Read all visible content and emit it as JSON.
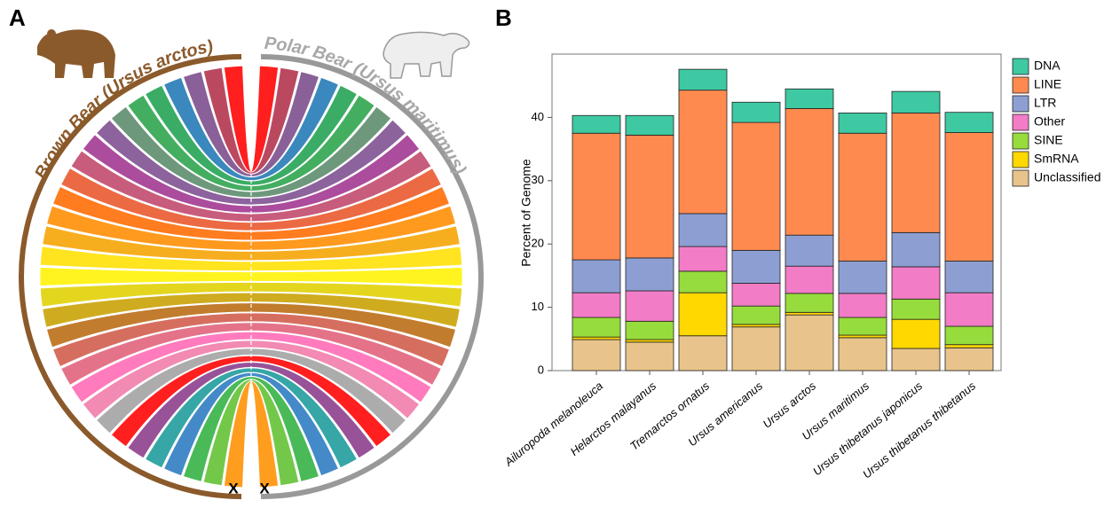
{
  "panel_a": {
    "label": "A",
    "left_label": "Brown Bear (Ursus arctos)",
    "right_label": "Polar Bear (Ursus maritimus)",
    "markers": [
      "X",
      "X"
    ]
  },
  "panel_b": {
    "label": "B"
  },
  "chart_data": {
    "type": "stacked_bar",
    "y_label": "Percent of Genome",
    "categories": [
      "Ailuropoda melanoleuca",
      "Helarctos malayanus",
      "Tremarctos ornatus",
      "Ursus americanus",
      "Ursus arctos",
      "Ursus maritimus",
      "Ursus thibetanus japonicus",
      "Ursus thibetanus thibetanus"
    ],
    "series": [
      {
        "name": "Unclassified",
        "color": "#e8c48c",
        "values": [
          4.9,
          4.5,
          5.5,
          6.9,
          8.8,
          5.2,
          3.5,
          3.6
        ]
      },
      {
        "name": "SmRNA",
        "color": "#ffd800",
        "values": [
          0.4,
          0.4,
          6.8,
          0.4,
          0.4,
          0.4,
          4.6,
          0.5
        ]
      },
      {
        "name": "SINE",
        "color": "#96dc3c",
        "values": [
          3.1,
          2.9,
          3.4,
          2.9,
          3.0,
          2.8,
          3.2,
          2.9
        ]
      },
      {
        "name": "Other",
        "color": "#f27cc6",
        "values": [
          3.9,
          4.8,
          3.9,
          3.6,
          4.3,
          3.8,
          5.1,
          5.3
        ]
      },
      {
        "name": "LTR",
        "color": "#8d9fd2",
        "values": [
          5.2,
          5.2,
          5.2,
          5.2,
          4.9,
          5.1,
          5.4,
          5.0
        ]
      },
      {
        "name": "LINE",
        "color": "#ff8a50",
        "values": [
          20.0,
          19.4,
          19.5,
          20.2,
          20.0,
          20.2,
          18.9,
          20.3
        ]
      },
      {
        "name": "DNA",
        "color": "#3ec9a2",
        "values": [
          2.8,
          3.1,
          3.3,
          3.2,
          3.1,
          3.2,
          3.4,
          3.2
        ]
      }
    ],
    "legend_order": [
      6,
      5,
      4,
      3,
      2,
      1,
      0
    ],
    "legend": "right",
    "ylim": [
      0,
      50
    ],
    "yticks": [
      0,
      10,
      20,
      30,
      40
    ],
    "grid": false
  }
}
